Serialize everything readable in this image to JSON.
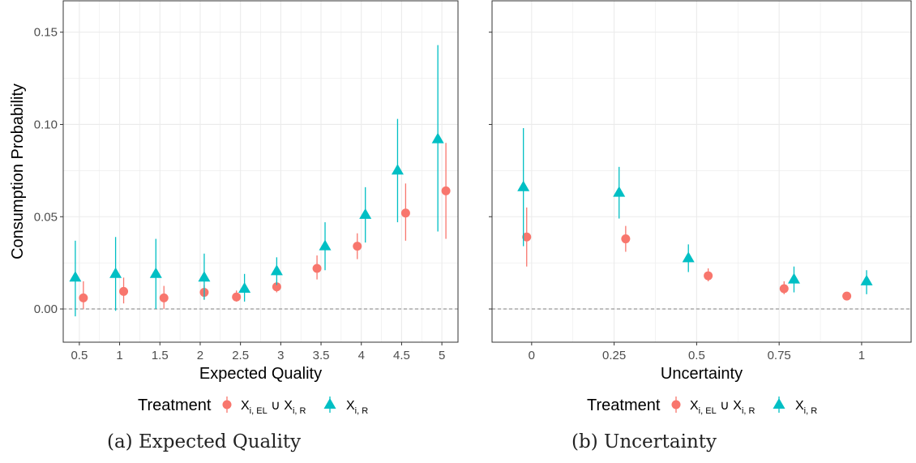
{
  "colors": {
    "series_a": "#F8766D",
    "series_b": "#00BFC4",
    "axis_text": "#4d4d4d",
    "grid": "#ebebeb",
    "zero_line": "#808080"
  },
  "legend": {
    "title": "Treatment",
    "series_a_main": "X",
    "series_a_sub1": "i, EL",
    "series_a_union": " ∪ X",
    "series_a_sub2": "i, R",
    "series_b_main": "X",
    "series_b_sub": "i, R"
  },
  "captions": {
    "a": "(a) Expected Quality",
    "b": "(b) Uncertainty"
  },
  "chart_data": [
    {
      "type": "scatter",
      "id": "a",
      "xlabel": "Expected Quality",
      "ylabel": "Consumption Probability",
      "xlim": [
        0.3,
        5.2
      ],
      "ylim": [
        -0.018,
        0.167
      ],
      "xticks": [
        0.5,
        1,
        1.5,
        2,
        2.5,
        3,
        3.5,
        4,
        4.5,
        5
      ],
      "xtick_labels": [
        "0.5",
        "1",
        "1.5",
        "2",
        "2.5",
        "3",
        "3.5",
        "4",
        "4.5",
        "5"
      ],
      "yticks": [
        0,
        0.05,
        0.1,
        0.15
      ],
      "ytick_labels": [
        "0.00",
        "0.05",
        "0.10",
        "0.15"
      ],
      "reference_line_y": 0,
      "grid": true,
      "legend_position": "bottom",
      "series": [
        {
          "key": "series_a",
          "marker": "circle",
          "points": [
            {
              "x": 0.55,
              "y": 0.006,
              "lo": 0.0,
              "hi": 0.015
            },
            {
              "x": 1.05,
              "y": 0.0095,
              "lo": 0.003,
              "hi": 0.017
            },
            {
              "x": 1.55,
              "y": 0.006,
              "lo": 0.0,
              "hi": 0.0125
            },
            {
              "x": 2.05,
              "y": 0.009,
              "lo": 0.005,
              "hi": 0.013
            },
            {
              "x": 2.45,
              "y": 0.0065,
              "lo": 0.004,
              "hi": 0.01
            },
            {
              "x": 2.95,
              "y": 0.012,
              "lo": 0.009,
              "hi": 0.015
            },
            {
              "x": 3.45,
              "y": 0.022,
              "lo": 0.016,
              "hi": 0.029
            },
            {
              "x": 3.95,
              "y": 0.034,
              "lo": 0.027,
              "hi": 0.041
            },
            {
              "x": 4.55,
              "y": 0.052,
              "lo": 0.037,
              "hi": 0.068
            },
            {
              "x": 5.05,
              "y": 0.064,
              "lo": 0.038,
              "hi": 0.09
            }
          ]
        },
        {
          "key": "series_b",
          "marker": "triangle",
          "points": [
            {
              "x": 0.45,
              "y": 0.017,
              "lo": -0.004,
              "hi": 0.037
            },
            {
              "x": 0.95,
              "y": 0.019,
              "lo": -0.001,
              "hi": 0.039
            },
            {
              "x": 1.45,
              "y": 0.019,
              "lo": 0.0,
              "hi": 0.038
            },
            {
              "x": 2.05,
              "y": 0.017,
              "lo": 0.005,
              "hi": 0.03
            },
            {
              "x": 2.55,
              "y": 0.011,
              "lo": 0.004,
              "hi": 0.019
            },
            {
              "x": 2.95,
              "y": 0.0205,
              "lo": 0.013,
              "hi": 0.028
            },
            {
              "x": 3.55,
              "y": 0.034,
              "lo": 0.021,
              "hi": 0.047
            },
            {
              "x": 4.05,
              "y": 0.051,
              "lo": 0.036,
              "hi": 0.066
            },
            {
              "x": 4.45,
              "y": 0.075,
              "lo": 0.047,
              "hi": 0.103
            },
            {
              "x": 4.95,
              "y": 0.092,
              "lo": 0.042,
              "hi": 0.143
            }
          ]
        }
      ]
    },
    {
      "type": "scatter",
      "id": "b",
      "xlabel": "Uncertainty",
      "ylabel": "",
      "xlim": [
        -0.12,
        1.15
      ],
      "ylim": [
        -0.018,
        0.167
      ],
      "xticks": [
        0,
        0.25,
        0.5,
        0.75,
        1
      ],
      "xtick_labels": [
        "0",
        "0.25",
        "0.5",
        "0.75",
        "1"
      ],
      "yticks": [
        0,
        0.05,
        0.1,
        0.15
      ],
      "ytick_labels": [],
      "reference_line_y": 0,
      "grid": true,
      "legend_position": "bottom",
      "series": [
        {
          "key": "series_a",
          "marker": "circle",
          "points": [
            {
              "x": -0.015,
              "y": 0.039,
              "lo": 0.023,
              "hi": 0.055
            },
            {
              "x": 0.285,
              "y": 0.038,
              "lo": 0.031,
              "hi": 0.045
            },
            {
              "x": 0.535,
              "y": 0.018,
              "lo": 0.015,
              "hi": 0.022
            },
            {
              "x": 0.765,
              "y": 0.011,
              "lo": 0.008,
              "hi": 0.015
            },
            {
              "x": 0.955,
              "y": 0.007,
              "lo": 0.005,
              "hi": 0.009
            }
          ]
        },
        {
          "key": "series_b",
          "marker": "triangle",
          "points": [
            {
              "x": -0.025,
              "y": 0.066,
              "lo": 0.034,
              "hi": 0.098
            },
            {
              "x": 0.265,
              "y": 0.063,
              "lo": 0.049,
              "hi": 0.077
            },
            {
              "x": 0.475,
              "y": 0.0275,
              "lo": 0.02,
              "hi": 0.035
            },
            {
              "x": 0.795,
              "y": 0.016,
              "lo": 0.009,
              "hi": 0.023
            },
            {
              "x": 1.015,
              "y": 0.015,
              "lo": 0.008,
              "hi": 0.021
            }
          ]
        }
      ]
    }
  ]
}
